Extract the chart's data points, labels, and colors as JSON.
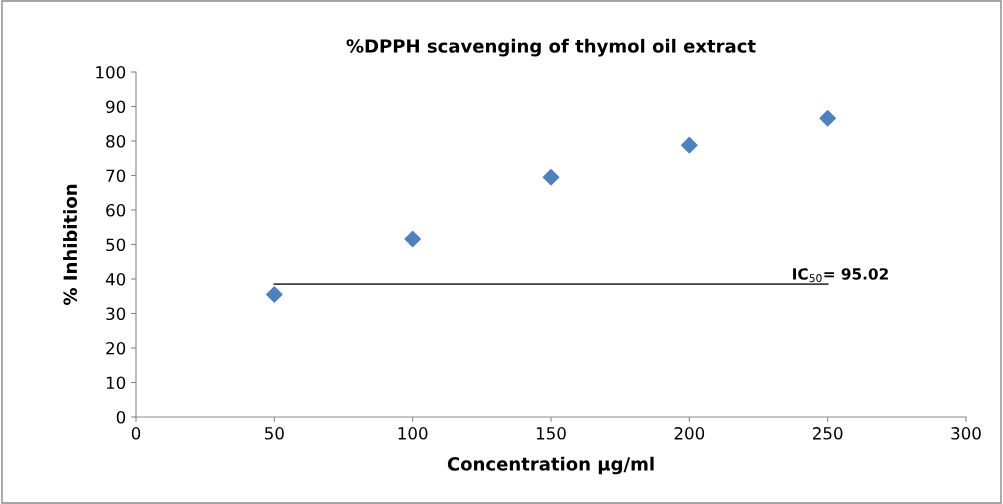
{
  "chart_data": {
    "type": "scatter",
    "title": "%DPPH scavenging of thymol oil extract",
    "xlabel": "Concentration µg/ml",
    "ylabel": "% Inhibition",
    "x": [
      50,
      100,
      150,
      200,
      250
    ],
    "series": [
      {
        "color": "#4f81bd",
        "values": [
          35.5,
          51.6,
          69.5,
          78.8,
          86.6
        ],
        "marker": "diamond"
      },
      {
        "type": "line",
        "color": "#404040",
        "x": [
          50,
          250
        ],
        "values": [
          38.5,
          38.5
        ],
        "marker": "none"
      }
    ],
    "annotations": [
      {
        "text": "IC$_{50}$= 95.02",
        "x": 237,
        "y": 38.5
      }
    ],
    "xlim": [
      0,
      300
    ],
    "xticks": [
      0,
      50,
      100,
      150,
      200,
      250,
      300
    ],
    "ylim": [
      0,
      100
    ],
    "yticks": [
      0,
      10,
      20,
      30,
      40,
      50,
      60,
      70,
      80,
      90,
      100
    ],
    "grid": false,
    "legend": false
  }
}
